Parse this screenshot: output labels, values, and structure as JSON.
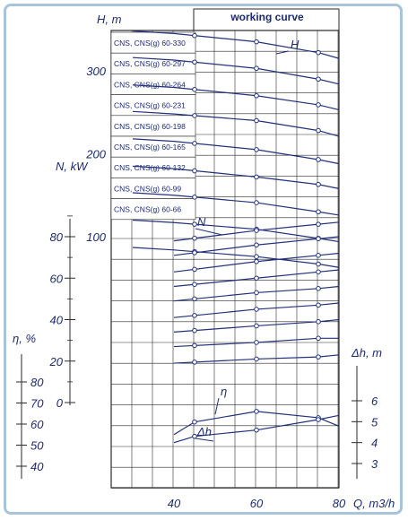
{
  "chart_data": {
    "type": "line",
    "title": "working curve",
    "xlabel": "Q, m3/h",
    "x_ticks": [
      "40",
      "60",
      "80"
    ],
    "xlim": [
      20,
      80
    ],
    "head_axis": {
      "label": "H, m",
      "ticks": [
        "100",
        "200",
        "300"
      ]
    },
    "power_axis": {
      "label": "N, kW",
      "ticks": [
        "0",
        "20",
        "40",
        "60",
        "80"
      ]
    },
    "efficiency_axis": {
      "label": "η, %",
      "ticks": [
        "40",
        "50",
        "60",
        "70",
        "80"
      ]
    },
    "npsh_axis": {
      "label": "Δh, m",
      "ticks": [
        "3",
        "4",
        "5",
        "6"
      ]
    },
    "curve_labels": {
      "head": "H",
      "power": "N",
      "efficiency": "η",
      "npsh": "Δh"
    },
    "models": [
      "CNS, CNS(g) 60-330",
      "CNS, CNS(g) 60-297",
      "CNS, CNS(g) 60-264",
      "CNS, CNS(g) 60-231",
      "CNS, CNS(g) 60-198",
      "CNS, CNS(g) 60-165",
      "CNS, CNS(g) 60-132",
      "CNS, CNS(g) 60-99",
      "CNS, CNS(g) 60-66"
    ],
    "series": {
      "head_curves": [
        {
          "name": "CNS, CNS(g) 60-330",
          "x": [
            40,
            60,
            75,
            80
          ],
          "y": [
            345,
            335,
            322,
            315
          ]
        },
        {
          "name": "CNS, CNS(g) 60-297",
          "x": [
            40,
            60,
            75,
            80
          ],
          "y": [
            313,
            303,
            290,
            284
          ]
        },
        {
          "name": "CNS, CNS(g) 60-264",
          "x": [
            40,
            60,
            75,
            80
          ],
          "y": [
            280,
            270,
            259,
            253
          ]
        },
        {
          "name": "CNS, CNS(g) 60-231",
          "x": [
            40,
            60,
            75,
            80
          ],
          "y": [
            248,
            240,
            228,
            221
          ]
        },
        {
          "name": "CNS, CNS(g) 60-198",
          "x": [
            40,
            60,
            75,
            80
          ],
          "y": [
            215,
            205,
            193,
            188
          ]
        },
        {
          "name": "CNS, CNS(g) 60-165",
          "x": [
            40,
            60,
            75,
            80
          ],
          "y": [
            182,
            172,
            163,
            158
          ]
        },
        {
          "name": "CNS, CNS(g) 60-132",
          "x": [
            40,
            60,
            75,
            80
          ],
          "y": [
            150,
            141,
            130,
            126
          ]
        },
        {
          "name": "CNS, CNS(g) 60-99",
          "x": [
            40,
            60,
            75,
            80
          ],
          "y": [
            117,
            109,
            98,
            94
          ]
        },
        {
          "name": "CNS, CNS(g) 60-66",
          "x": [
            40,
            60,
            75,
            80
          ],
          "y": [
            84,
            76,
            67,
            63
          ]
        }
      ],
      "power_curves": [
        {
          "name": "CNS, CNS(g) 60-330",
          "x": [
            40,
            60,
            75,
            80
          ],
          "y": [
            78,
            83,
            86,
            87
          ]
        },
        {
          "name": "CNS, CNS(g) 60-297",
          "x": [
            40,
            60,
            75,
            80
          ],
          "y": [
            71,
            76,
            79,
            80
          ]
        },
        {
          "name": "CNS, CNS(g) 60-264",
          "x": [
            40,
            60,
            75,
            80
          ],
          "y": [
            63,
            68,
            71,
            72
          ]
        },
        {
          "name": "CNS, CNS(g) 60-231",
          "x": [
            40,
            60,
            75,
            80
          ],
          "y": [
            56,
            60,
            63,
            64
          ]
        },
        {
          "name": "CNS, CNS(g) 60-198",
          "x": [
            40,
            60,
            75,
            80
          ],
          "y": [
            49,
            53,
            55,
            56
          ]
        },
        {
          "name": "CNS, CNS(g) 60-165",
          "x": [
            40,
            60,
            75,
            80
          ],
          "y": [
            41,
            45,
            47,
            48
          ]
        },
        {
          "name": "CNS, CNS(g) 60-132",
          "x": [
            40,
            60,
            75,
            80
          ],
          "y": [
            34,
            37,
            39,
            40
          ]
        },
        {
          "name": "CNS, CNS(g) 60-99",
          "x": [
            40,
            60,
            75,
            80
          ],
          "y": [
            27,
            29,
            31,
            31
          ]
        },
        {
          "name": "CNS, CNS(g) 60-66",
          "x": [
            40,
            60,
            75,
            80
          ],
          "y": [
            19,
            21,
            22,
            23
          ]
        }
      ],
      "efficiency": {
        "name": "η",
        "x": [
          40,
          45,
          60,
          75,
          80
        ],
        "y": [
          55,
          61,
          66,
          63,
          59
        ]
      },
      "npsh": {
        "name": "Δh",
        "x": [
          40,
          45,
          60,
          75,
          80
        ],
        "y": [
          4.0,
          4.3,
          4.6,
          5.1,
          5.3
        ]
      }
    }
  }
}
